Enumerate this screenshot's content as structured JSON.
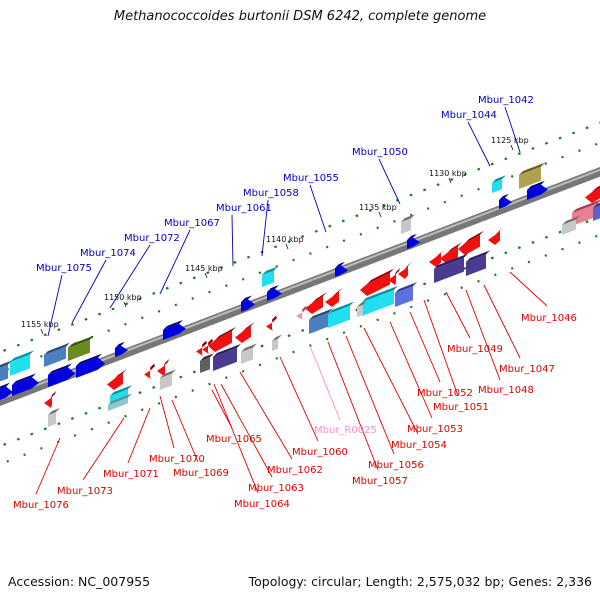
{
  "header": {
    "title": "Methanococcoides burtonii DSM 6242, complete genome"
  },
  "footer": {
    "accession": "Accession: NC_007955",
    "summary": "Topology: circular; Length: 2,575,032 bp; Genes: 2,336"
  },
  "colors": {
    "forward_label": "#0000c0",
    "reverse_label": "#e00000",
    "rna_label": "#ff8ad0"
  },
  "scale_ticks": [
    "1125 kbp",
    "1130 kbp",
    "1135 kbp",
    "1140 kbp",
    "1145 kbp",
    "1150 kbp",
    "1155 kbp"
  ],
  "labels": {
    "Mbur_1042": "Mbur_1042",
    "Mbur_1044": "Mbur_1044",
    "Mbur_1050": "Mbur_1050",
    "Mbur_1055": "Mbur_1055",
    "Mbur_1058": "Mbur_1058",
    "Mbur_1061": "Mbur_1061",
    "Mbur_1067": "Mbur_1067",
    "Mbur_1072": "Mbur_1072",
    "Mbur_1074": "Mbur_1074",
    "Mbur_1075": "Mbur_1075",
    "Mbur_1046": "Mbur_1046",
    "Mbur_1047": "Mbur_1047",
    "Mbur_1048": "Mbur_1048",
    "Mbur_1049": "Mbur_1049",
    "Mbur_1051": "Mbur_1051",
    "Mbur_1052": "Mbur_1052",
    "Mbur_1053": "Mbur_1053",
    "Mbur_1054": "Mbur_1054",
    "Mbur_1056": "Mbur_1056",
    "Mbur_1057": "Mbur_1057",
    "Mbur_R0025": "Mbur_R0025",
    "Mbur_1060": "Mbur_1060",
    "Mbur_1062": "Mbur_1062",
    "Mbur_1063": "Mbur_1063",
    "Mbur_1064": "Mbur_1064",
    "Mbur_1065": "Mbur_1065",
    "Mbur_1069": "Mbur_1069",
    "Mbur_1070": "Mbur_1070",
    "Mbur_1071": "Mbur_1071",
    "Mbur_1073": "Mbur_1073",
    "Mbur_1076": "Mbur_1076"
  }
}
